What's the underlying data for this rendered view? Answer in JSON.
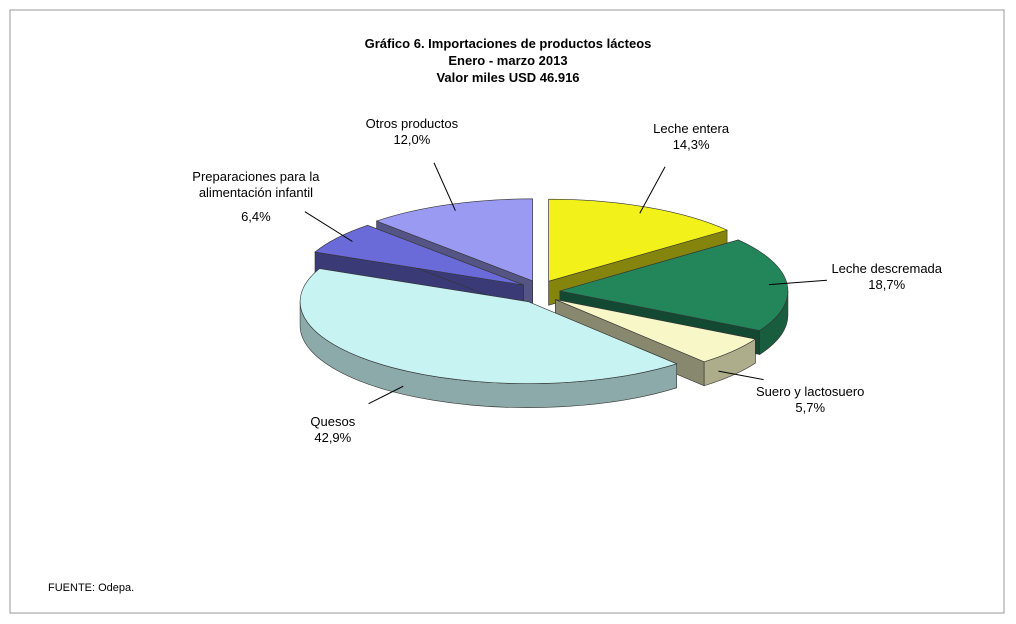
{
  "chart_data": {
    "type": "pie3d",
    "title": "Gráfico 6. Importaciones de productos lácteos",
    "subtitle": [
      "Enero - marzo 2013",
      "Valor miles USD  46.916"
    ],
    "categories": [
      "Leche entera",
      "Leche descremada",
      "Suero y lactosuero",
      "Quesos",
      "Preparaciones para la alimentación infantil",
      "Otros productos"
    ],
    "values": [
      14.3,
      18.7,
      5.7,
      42.9,
      6.4,
      12.0
    ],
    "value_labels": [
      "14,3%",
      "18,7%",
      "5,7%",
      "42,9%",
      "6,4%",
      "12,0%"
    ],
    "colors": [
      "#f2f21a",
      "#23855a",
      "#f7f7c8",
      "#c8f3f3",
      "#6a6ad8",
      "#9a9af2"
    ],
    "source": "FUENTE: Odepa."
  }
}
